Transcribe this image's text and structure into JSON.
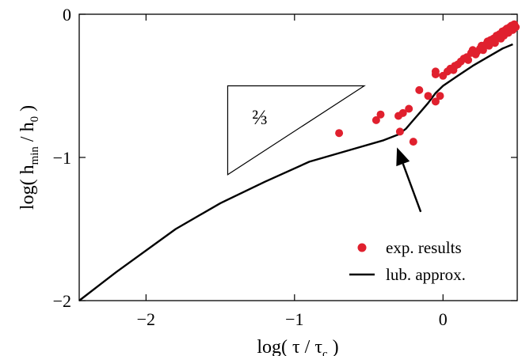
{
  "chart_data": {
    "type": "scatter",
    "xlim": [
      -2.45,
      0.5
    ],
    "ylim": [
      -2,
      0
    ],
    "xticks": [
      -2,
      -1,
      0
    ],
    "yticks": [
      -2,
      -1,
      0
    ],
    "xtick_labels": [
      "−2",
      "−1",
      "0"
    ],
    "ytick_labels": [
      "−2",
      "−1",
      "0"
    ],
    "xlabel": {
      "pre": "log( τ / τ",
      "sub": "c",
      "post": " )"
    },
    "ylabel": {
      "pre": "log( h",
      "sub": "min",
      "mid": " / h",
      "sub2": "0",
      "post": " )"
    },
    "legend_position": "bottom-right",
    "grid": false,
    "slope_annotation": {
      "label": "2/3",
      "display": "⅔",
      "triangle": [
        [
          -1.45,
          -0.5
        ],
        [
          -0.53,
          -0.5
        ],
        [
          -1.45,
          -1.12
        ]
      ]
    },
    "arrow_annotation": {
      "from": [
        -0.15,
        -1.38
      ],
      "to": [
        -0.31,
        -0.93
      ]
    },
    "series": [
      {
        "name": "exp. results",
        "kind": "scatter",
        "color": "#e0202e",
        "points": [
          [
            -0.7,
            -0.83
          ],
          [
            -0.45,
            -0.74
          ],
          [
            -0.42,
            -0.7
          ],
          [
            -0.3,
            -0.71
          ],
          [
            -0.27,
            -0.69
          ],
          [
            -0.23,
            -0.66
          ],
          [
            -0.16,
            -0.53
          ],
          [
            -0.1,
            -0.57
          ],
          [
            -0.05,
            -0.61
          ],
          [
            -0.02,
            -0.57
          ],
          [
            -0.2,
            -0.89
          ],
          [
            -0.29,
            -0.82
          ],
          [
            -0.05,
            -0.4
          ],
          [
            -0.05,
            -0.42
          ],
          [
            0.0,
            -0.43
          ],
          [
            0.03,
            -0.4
          ],
          [
            0.05,
            -0.38
          ],
          [
            0.07,
            -0.39
          ],
          [
            0.08,
            -0.36
          ],
          [
            0.1,
            -0.35
          ],
          [
            0.12,
            -0.33
          ],
          [
            0.14,
            -0.31
          ],
          [
            0.16,
            -0.3
          ],
          [
            0.17,
            -0.32
          ],
          [
            0.19,
            -0.27
          ],
          [
            0.2,
            -0.25
          ],
          [
            0.22,
            -0.28
          ],
          [
            0.23,
            -0.26
          ],
          [
            0.25,
            -0.24
          ],
          [
            0.26,
            -0.22
          ],
          [
            0.27,
            -0.25
          ],
          [
            0.29,
            -0.21
          ],
          [
            0.3,
            -0.19
          ],
          [
            0.31,
            -0.22
          ],
          [
            0.32,
            -0.18
          ],
          [
            0.34,
            -0.17
          ],
          [
            0.35,
            -0.2
          ],
          [
            0.36,
            -0.15
          ],
          [
            0.38,
            -0.14
          ],
          [
            0.39,
            -0.17
          ],
          [
            0.4,
            -0.12
          ],
          [
            0.41,
            -0.15
          ],
          [
            0.42,
            -0.11
          ],
          [
            0.43,
            -0.1
          ],
          [
            0.44,
            -0.13
          ],
          [
            0.45,
            -0.09
          ],
          [
            0.46,
            -0.08
          ],
          [
            0.47,
            -0.11
          ],
          [
            0.48,
            -0.07
          ],
          [
            0.49,
            -0.09
          ]
        ]
      },
      {
        "name": "lub. approx.",
        "kind": "line",
        "color": "#000000",
        "points": [
          [
            -2.45,
            -2.0
          ],
          [
            -2.2,
            -1.8
          ],
          [
            -1.8,
            -1.5
          ],
          [
            -1.5,
            -1.32
          ],
          [
            -1.2,
            -1.17
          ],
          [
            -0.9,
            -1.03
          ],
          [
            -0.6,
            -0.94
          ],
          [
            -0.4,
            -0.88
          ],
          [
            -0.3,
            -0.84
          ],
          [
            -0.25,
            -0.8
          ],
          [
            -0.2,
            -0.74
          ],
          [
            -0.15,
            -0.68
          ],
          [
            -0.1,
            -0.62
          ],
          [
            -0.05,
            -0.55
          ],
          [
            0.0,
            -0.5
          ],
          [
            0.1,
            -0.43
          ],
          [
            0.2,
            -0.36
          ],
          [
            0.3,
            -0.3
          ],
          [
            0.4,
            -0.24
          ],
          [
            0.47,
            -0.21
          ]
        ]
      }
    ]
  }
}
